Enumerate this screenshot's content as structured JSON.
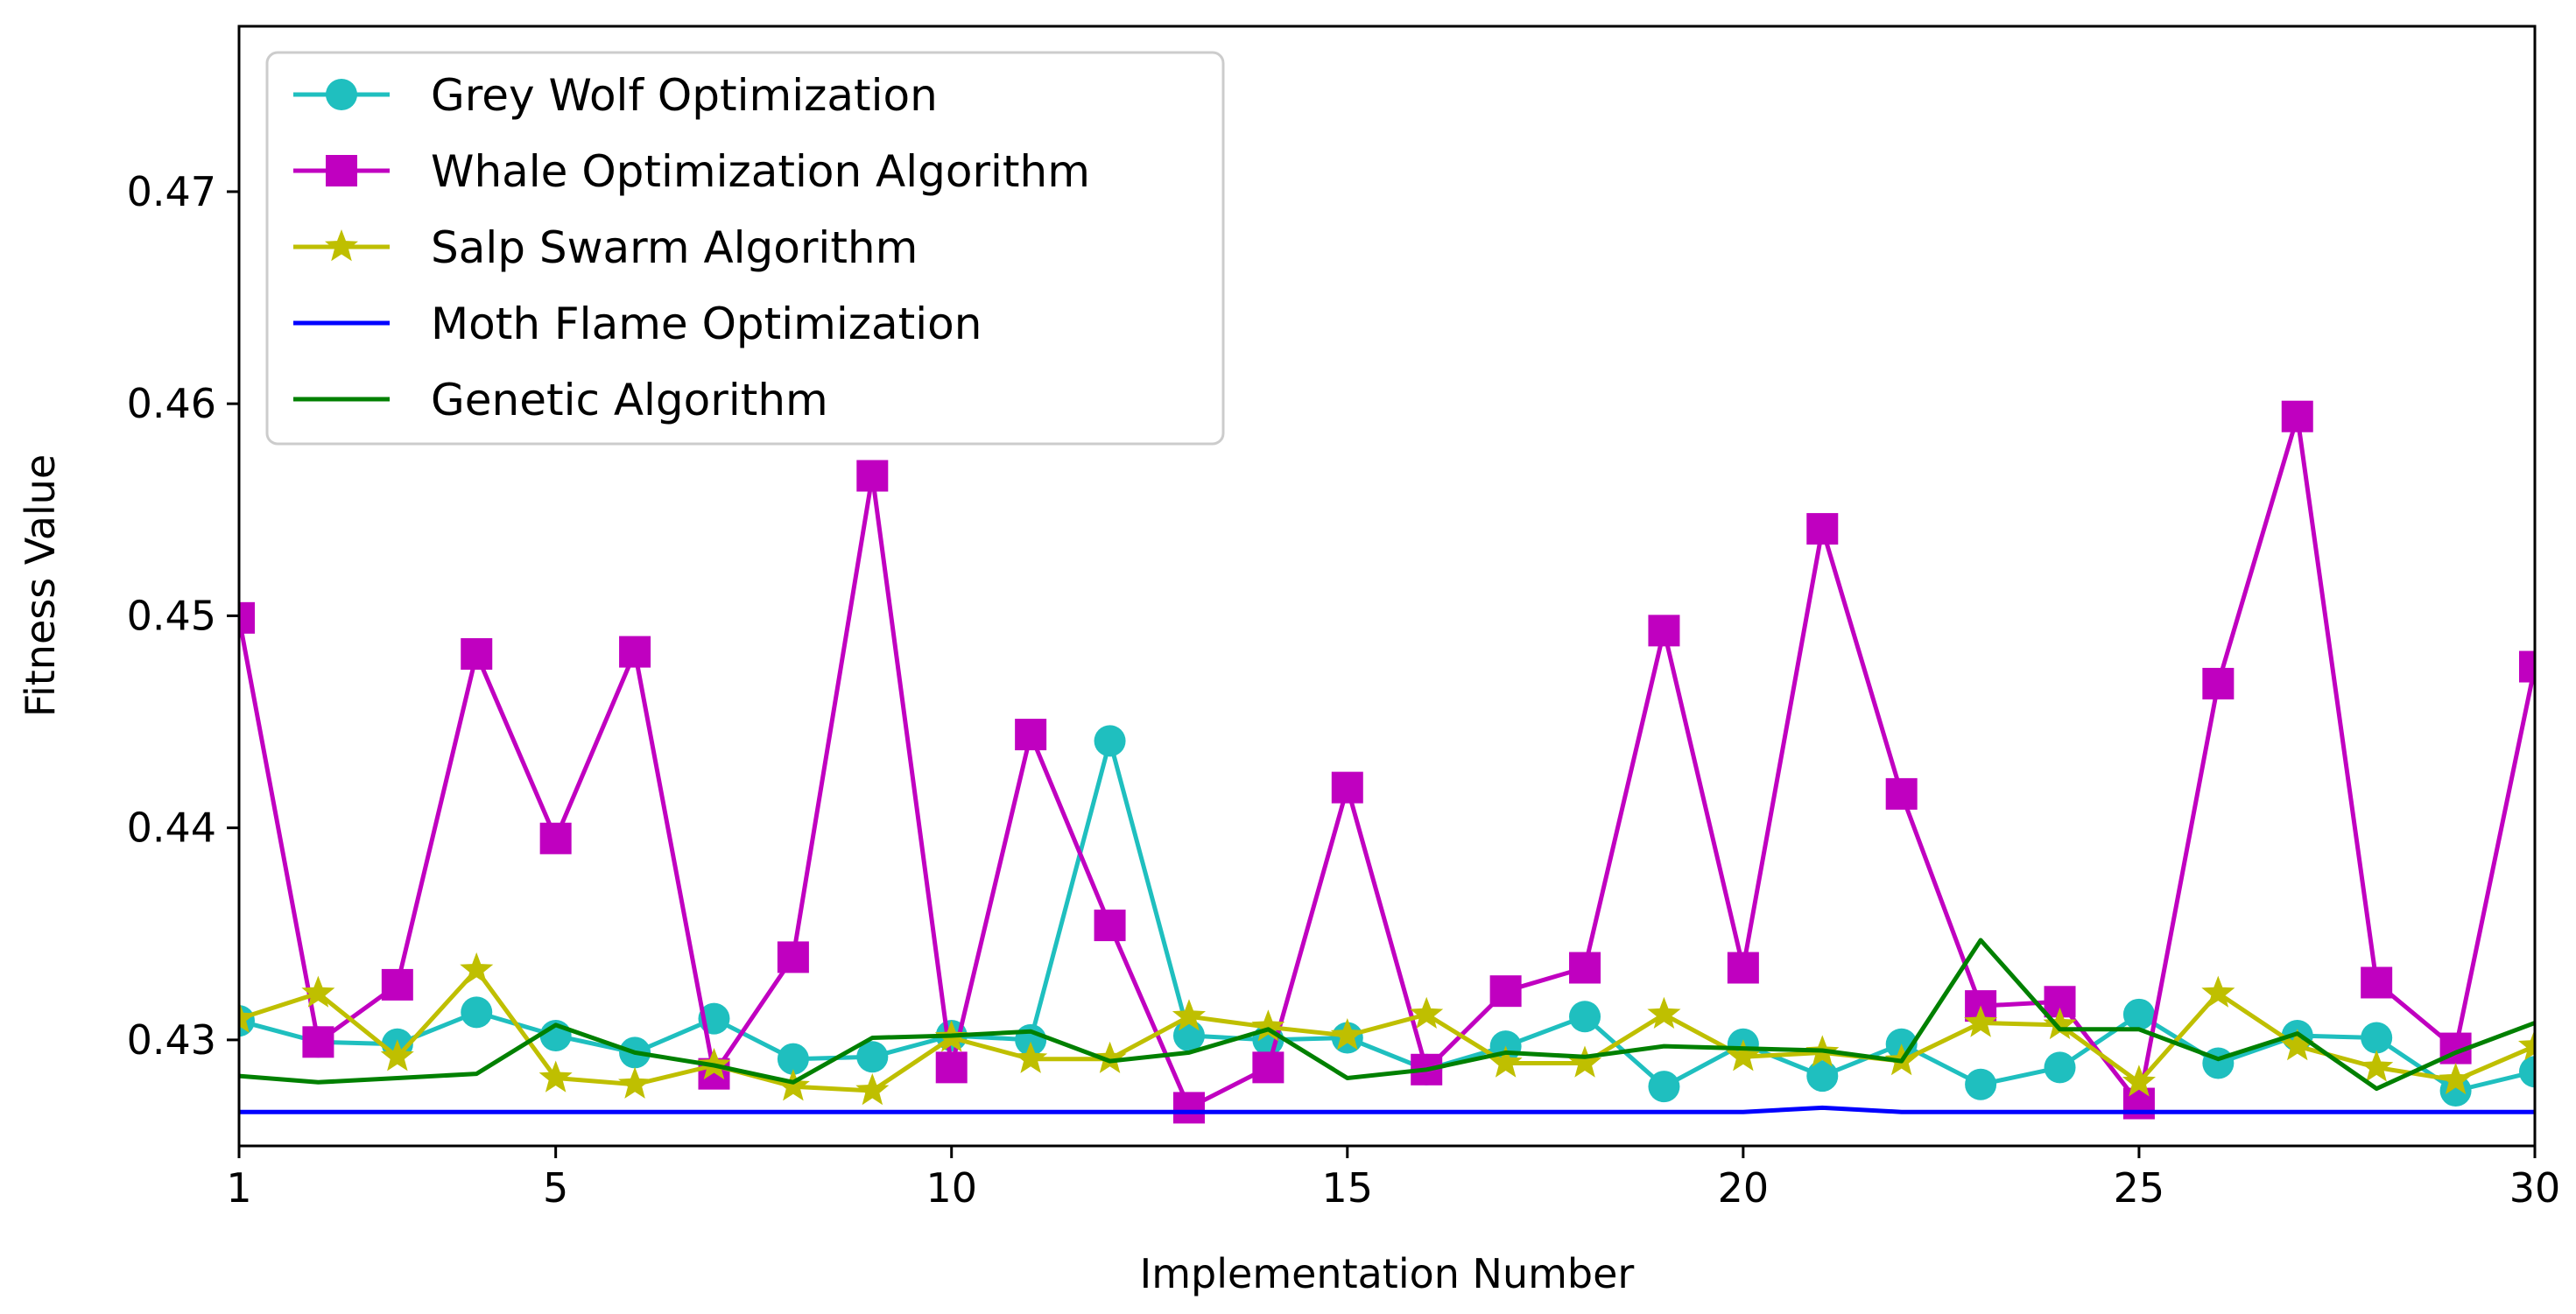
{
  "chart_data": {
    "type": "line",
    "title": "",
    "xlabel": "Implementation Number",
    "ylabel": "Fitness Value",
    "xlim": [
      1,
      30
    ],
    "ylim": [
      0.425,
      0.4778
    ],
    "xticks": [
      1,
      5,
      10,
      15,
      20,
      25,
      30
    ],
    "yticks": [
      0.43,
      0.44,
      0.45,
      0.46,
      0.47
    ],
    "ytick_labels": [
      "0.43",
      "0.44",
      "0.45",
      "0.46",
      "0.47"
    ],
    "grid": false,
    "legend_position": "top-left",
    "x": [
      1,
      2,
      3,
      4,
      5,
      6,
      7,
      8,
      9,
      10,
      11,
      12,
      13,
      14,
      15,
      16,
      17,
      18,
      19,
      20,
      21,
      22,
      23,
      24,
      25,
      26,
      27,
      28,
      29,
      30
    ],
    "series": [
      {
        "name": "Grey Wolf Optimization",
        "color": "#1fbfbf",
        "marker": "circle",
        "values": [
          0.4309,
          0.4299,
          0.4298,
          0.4313,
          0.4302,
          0.4294,
          0.431,
          0.4291,
          0.4292,
          0.4302,
          0.43,
          0.4441,
          0.4302,
          0.43,
          0.4301,
          0.4286,
          0.4297,
          0.4311,
          0.4278,
          0.4298,
          0.4283,
          0.4298,
          0.4279,
          0.4287,
          0.4312,
          0.4289,
          0.4302,
          0.4301,
          0.4276,
          0.4285
        ]
      },
      {
        "name": "Whale Optimization Algorithm",
        "color": "#c000c0",
        "marker": "square",
        "values": [
          0.4499,
          0.4299,
          0.4326,
          0.4482,
          0.4395,
          0.4483,
          0.4284,
          0.4339,
          0.4566,
          0.4287,
          0.4444,
          0.4354,
          0.4268,
          0.4287,
          0.4419,
          0.4286,
          0.4323,
          0.4334,
          0.4493,
          0.4334,
          0.4541,
          0.4416,
          0.4316,
          0.4318,
          0.427,
          0.4468,
          0.4594,
          0.4327,
          0.4296,
          0.4476
        ]
      },
      {
        "name": "Salp Swarm Algorithm",
        "color": "#bfbf00",
        "marker": "star",
        "values": [
          0.431,
          0.4322,
          0.4292,
          0.4333,
          0.4282,
          0.4279,
          0.4288,
          0.4278,
          0.4276,
          0.4301,
          0.4291,
          0.4291,
          0.4311,
          0.4306,
          0.4302,
          0.4312,
          0.4289,
          0.4289,
          0.4312,
          0.4292,
          0.4294,
          0.429,
          0.4308,
          0.4307,
          0.428,
          0.4322,
          0.4297,
          0.4287,
          0.4281,
          0.4297
        ]
      },
      {
        "name": "Moth Flame Optimization",
        "color": "#0000ff",
        "marker": "none",
        "values": [
          0.4266,
          0.4266,
          0.4266,
          0.4266,
          0.4266,
          0.4266,
          0.4266,
          0.4266,
          0.4266,
          0.4266,
          0.4266,
          0.4266,
          0.4266,
          0.4266,
          0.4266,
          0.4266,
          0.4266,
          0.4266,
          0.4266,
          0.4266,
          0.4268,
          0.4266,
          0.4266,
          0.4266,
          0.4266,
          0.4266,
          0.4266,
          0.4266,
          0.4266,
          0.4266
        ]
      },
      {
        "name": "Genetic Algorithm",
        "color": "#008000",
        "marker": "none",
        "values": [
          0.4283,
          0.428,
          0.4282,
          0.4284,
          0.4307,
          0.4294,
          0.4288,
          0.428,
          0.4301,
          0.4302,
          0.4304,
          0.429,
          0.4294,
          0.4305,
          0.4282,
          0.4286,
          0.4294,
          0.4292,
          0.4297,
          0.4296,
          0.4295,
          0.429,
          0.4347,
          0.4305,
          0.4305,
          0.4291,
          0.4303,
          0.4277,
          0.4294,
          0.4308
        ]
      }
    ]
  }
}
